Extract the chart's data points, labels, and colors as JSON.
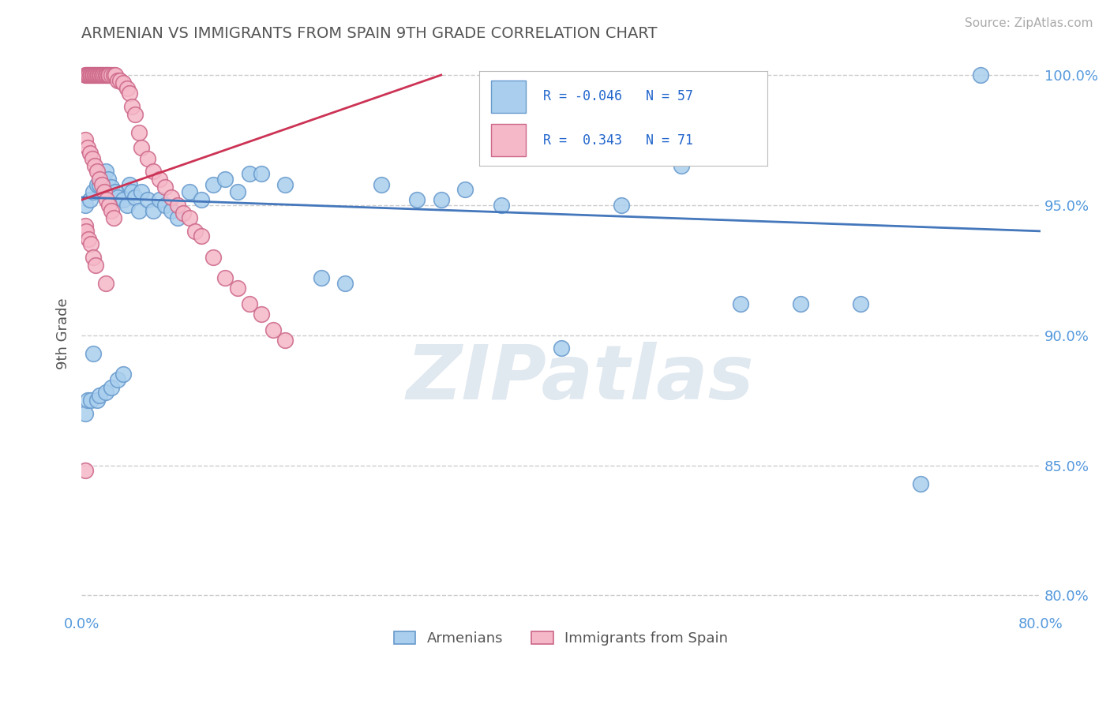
{
  "title": "ARMENIAN VS IMMIGRANTS FROM SPAIN 9TH GRADE CORRELATION CHART",
  "source": "Source: ZipAtlas.com",
  "ylabel": "9th Grade",
  "xlim": [
    0.0,
    0.8
  ],
  "ylim": [
    0.793,
    1.008
  ],
  "yticks": [
    0.8,
    0.85,
    0.9,
    0.95,
    1.0
  ],
  "ytick_labels": [
    "80.0%",
    "85.0%",
    "90.0%",
    "95.0%",
    "100.0%"
  ],
  "xticks": [
    0.0,
    0.1,
    0.2,
    0.3,
    0.4,
    0.5,
    0.6,
    0.7,
    0.8
  ],
  "xtick_labels": [
    "0.0%",
    "",
    "",
    "",
    "",
    "",
    "",
    "",
    "80.0%"
  ],
  "blue_R": -0.046,
  "blue_N": 57,
  "pink_R": 0.343,
  "pink_N": 71,
  "blue_color": "#aacfee",
  "pink_color": "#f5b8c8",
  "blue_edge_color": "#6699cc",
  "pink_edge_color": "#cc6688",
  "blue_line_color": "#4477bb",
  "pink_line_color": "#cc3355",
  "tick_color": "#5599dd",
  "grid_color": "#cccccc",
  "watermark_color": "#e0e8f0",
  "legend_blue_label": "Armenians",
  "legend_pink_label": "Immigrants from Spain",
  "blue_trend_x0": 0.0,
  "blue_trend_x1": 0.8,
  "blue_trend_y0": 0.953,
  "blue_trend_y1": 0.94,
  "pink_trend_x0": 0.0,
  "pink_trend_x1": 0.3,
  "pink_trend_y0": 0.952,
  "pink_trend_y1": 1.0,
  "blue_x": [
    0.003,
    0.007,
    0.01,
    0.013,
    0.015,
    0.018,
    0.02,
    0.022,
    0.025,
    0.028,
    0.03,
    0.035,
    0.038,
    0.04,
    0.042,
    0.045,
    0.048,
    0.05,
    0.055,
    0.06,
    0.065,
    0.07,
    0.075,
    0.08,
    0.09,
    0.1,
    0.11,
    0.12,
    0.13,
    0.14,
    0.15,
    0.17,
    0.2,
    0.22,
    0.25,
    0.28,
    0.3,
    0.32,
    0.35,
    0.4,
    0.45,
    0.5,
    0.55,
    0.6,
    0.65,
    0.7,
    0.75,
    0.003,
    0.005,
    0.008,
    0.01,
    0.013,
    0.015,
    0.02,
    0.025,
    0.03,
    0.035
  ],
  "blue_y": [
    0.95,
    0.952,
    0.955,
    0.958,
    0.958,
    0.96,
    0.963,
    0.96,
    0.957,
    0.955,
    0.953,
    0.952,
    0.95,
    0.958,
    0.955,
    0.953,
    0.948,
    0.955,
    0.952,
    0.948,
    0.952,
    0.95,
    0.948,
    0.945,
    0.955,
    0.952,
    0.958,
    0.96,
    0.955,
    0.962,
    0.962,
    0.958,
    0.922,
    0.92,
    0.958,
    0.952,
    0.952,
    0.956,
    0.95,
    0.895,
    0.95,
    0.965,
    0.912,
    0.912,
    0.912,
    0.843,
    1.0,
    0.87,
    0.875,
    0.875,
    0.893,
    0.875,
    0.877,
    0.878,
    0.88,
    0.883,
    0.885
  ],
  "pink_x": [
    0.003,
    0.004,
    0.005,
    0.006,
    0.007,
    0.008,
    0.009,
    0.01,
    0.011,
    0.012,
    0.013,
    0.014,
    0.015,
    0.016,
    0.017,
    0.018,
    0.019,
    0.02,
    0.021,
    0.022,
    0.023,
    0.025,
    0.027,
    0.028,
    0.03,
    0.032,
    0.035,
    0.038,
    0.04,
    0.042,
    0.045,
    0.048,
    0.05,
    0.055,
    0.06,
    0.065,
    0.07,
    0.075,
    0.08,
    0.085,
    0.09,
    0.095,
    0.1,
    0.11,
    0.12,
    0.13,
    0.14,
    0.15,
    0.16,
    0.17,
    0.003,
    0.005,
    0.007,
    0.009,
    0.011,
    0.013,
    0.015,
    0.017,
    0.019,
    0.021,
    0.023,
    0.025,
    0.027,
    0.003,
    0.004,
    0.006,
    0.008,
    0.01,
    0.012,
    0.02,
    0.003
  ],
  "pink_y": [
    1.0,
    1.0,
    1.0,
    1.0,
    1.0,
    1.0,
    1.0,
    1.0,
    1.0,
    1.0,
    1.0,
    1.0,
    1.0,
    1.0,
    1.0,
    1.0,
    1.0,
    1.0,
    1.0,
    1.0,
    1.0,
    1.0,
    1.0,
    1.0,
    0.998,
    0.998,
    0.997,
    0.995,
    0.993,
    0.988,
    0.985,
    0.978,
    0.972,
    0.968,
    0.963,
    0.96,
    0.957,
    0.953,
    0.95,
    0.947,
    0.945,
    0.94,
    0.938,
    0.93,
    0.922,
    0.918,
    0.912,
    0.908,
    0.902,
    0.898,
    0.975,
    0.972,
    0.97,
    0.968,
    0.965,
    0.963,
    0.96,
    0.958,
    0.955,
    0.952,
    0.95,
    0.948,
    0.945,
    0.942,
    0.94,
    0.937,
    0.935,
    0.93,
    0.927,
    0.92,
    0.848
  ]
}
